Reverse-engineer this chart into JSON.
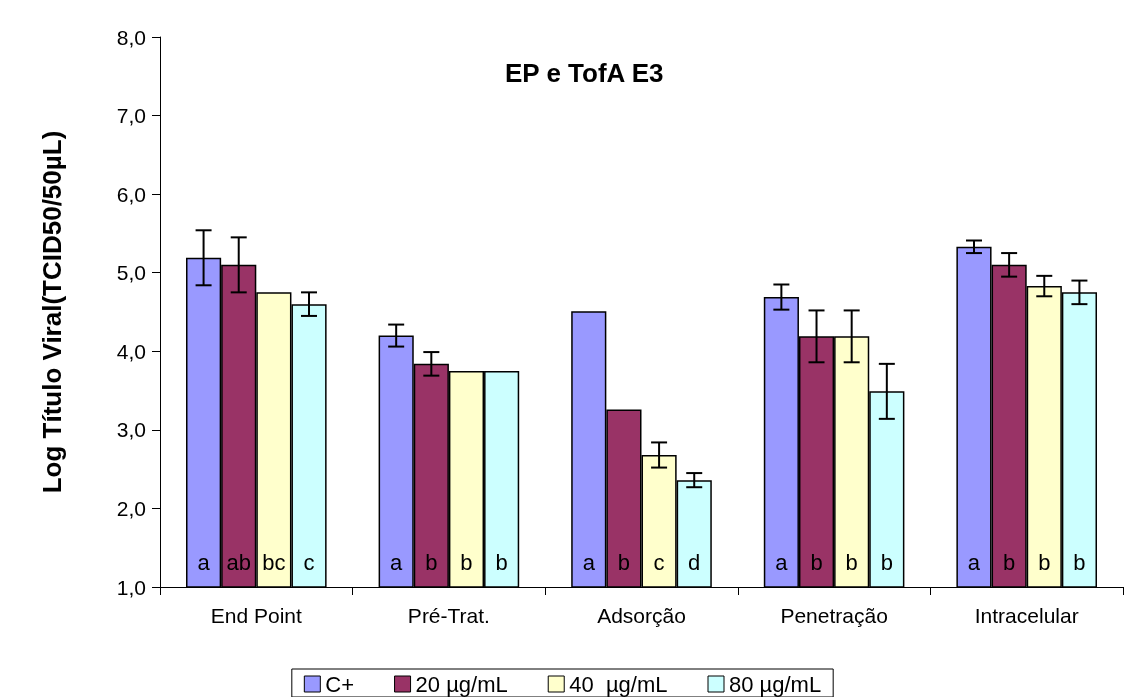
{
  "chart_data": {
    "type": "bar",
    "title": "EP e TofA E3",
    "ylabel": "Log Título Viral(TCID50/50µL)",
    "categories": [
      "End Point",
      "Pré-Trat.",
      "Adsorção",
      "Penetração",
      "Intracelular"
    ],
    "series": [
      {
        "name": "C+",
        "color": "#9999ff",
        "values": [
          5.19,
          4.2,
          4.51,
          4.69,
          5.33
        ],
        "errors": [
          0.35,
          0.14,
          null,
          0.16,
          0.08
        ],
        "value_labels": [
          "a",
          "a",
          "a",
          "a",
          "a"
        ]
      },
      {
        "name": "20 µg/mL",
        "color": "#993366",
        "values": [
          5.1,
          3.84,
          3.26,
          4.19,
          5.1
        ],
        "errors": [
          0.35,
          0.15,
          null,
          0.33,
          0.15
        ],
        "value_labels": [
          "ab",
          "b",
          "b",
          "b",
          "b"
        ]
      },
      {
        "name": "40  µg/mL",
        "color": "#ffffcc",
        "values": [
          4.75,
          3.75,
          2.68,
          4.19,
          4.83
        ],
        "errors": [
          null,
          null,
          0.16,
          0.33,
          0.13
        ],
        "value_labels": [
          "bc",
          "b",
          "c",
          "b",
          "b"
        ]
      },
      {
        "name": "80 µg/mL",
        "color": "#ccffff",
        "values": [
          4.6,
          3.75,
          2.36,
          3.49,
          4.75
        ],
        "errors": [
          0.15,
          null,
          0.09,
          0.35,
          0.15
        ],
        "value_labels": [
          "c",
          "b",
          "d",
          "b",
          "b"
        ]
      }
    ],
    "ylim": [
      1,
      8
    ],
    "yticks": [
      {
        "value": 1,
        "label": "1,0"
      },
      {
        "value": 2,
        "label": "2,0"
      },
      {
        "value": 3,
        "label": "3,0"
      },
      {
        "value": 4,
        "label": "4,0"
      },
      {
        "value": 5,
        "label": "5,0"
      },
      {
        "value": 6,
        "label": "6,0"
      },
      {
        "value": 7,
        "label": "7,0"
      },
      {
        "value": 8,
        "label": "8,0"
      }
    ],
    "grid": false,
    "legend": "bottom"
  }
}
